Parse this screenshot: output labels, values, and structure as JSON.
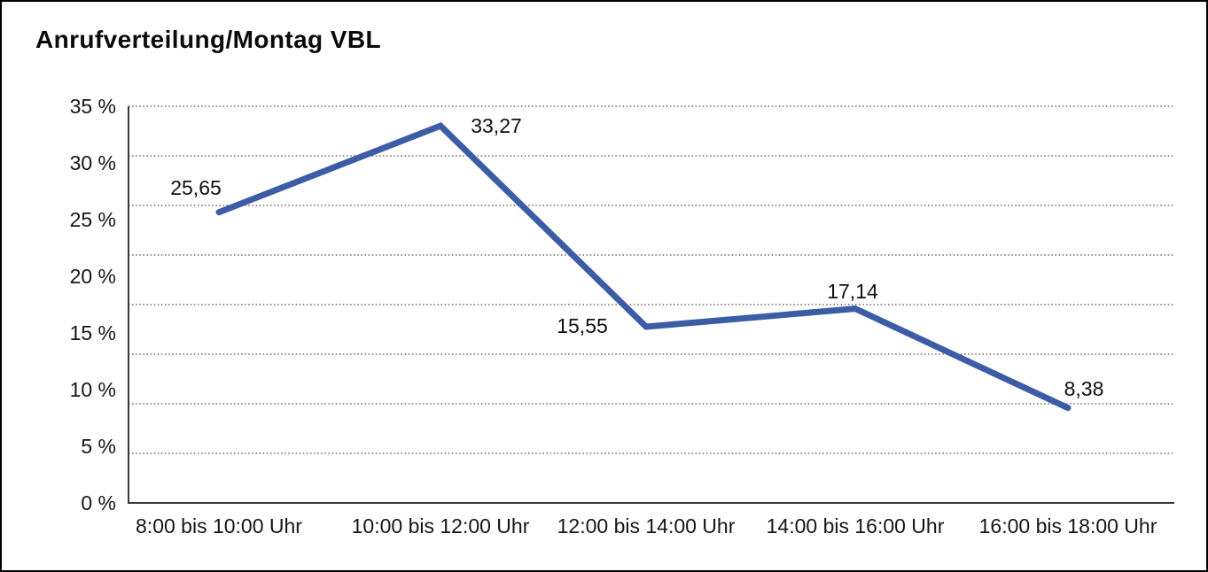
{
  "title": "Anrufverteilung/Montag VBL",
  "chart_data": {
    "type": "line",
    "title": "Anrufverteilung/Montag VBL",
    "categories": [
      "8:00 bis 10:00 Uhr",
      "10:00 bis 12:00 Uhr",
      "12:00 bis 14:00 Uhr",
      "14:00 bis 16:00 Uhr",
      "16:00 bis 18:00 Uhr"
    ],
    "values": [
      25.65,
      33.27,
      15.55,
      17.14,
      8.38
    ],
    "point_labels": [
      "25,65",
      "33,27",
      "15,55",
      "17,14",
      "8,38"
    ],
    "ytick_labels": [
      "35 %",
      "30 %",
      "25 %",
      "20 %",
      "15 %",
      "10 %",
      "5 %",
      "0 %"
    ],
    "ylabel": "",
    "xlabel": "",
    "ylim": [
      0,
      35
    ],
    "legend": "none",
    "grid": "horizontal-dotted",
    "line_color": "#3d5ca6",
    "axis_color": "#3a3a3a",
    "grid_color": "#4a4a4a",
    "text_color": "#161616"
  }
}
